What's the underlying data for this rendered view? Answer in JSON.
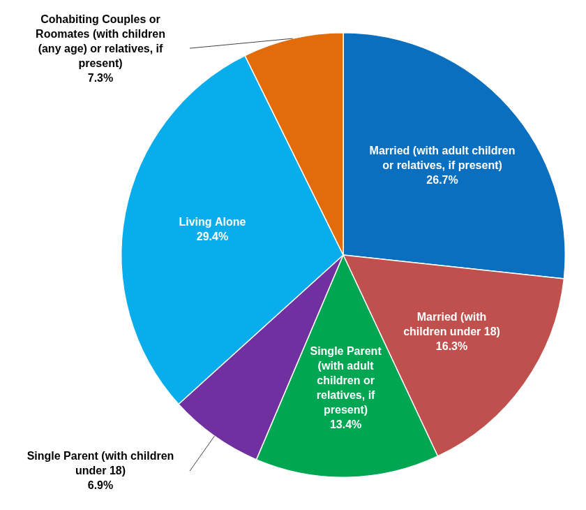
{
  "chart_data": {
    "type": "pie",
    "categories": [
      "Married (with adult children or relatives, if present)",
      "Married (with children under 18)",
      "Single Parent (with adult children or relatives, if present)",
      "Single Parent (with children under 18)",
      "Living Alone",
      "Cohabiting Couples or Roomates (with children (any age) or relatives, if present)"
    ],
    "values": [
      26.7,
      16.3,
      13.4,
      6.9,
      29.4,
      7.3
    ],
    "value_labels": [
      "26.7%",
      "16.3%",
      "13.4%",
      "6.9%",
      "29.4%",
      "7.3%"
    ],
    "colors": [
      "#0B6FBF",
      "#C0504D",
      "#00A651",
      "#7030A0",
      "#0AADEB",
      "#E36C0A"
    ],
    "data_labels": true
  }
}
